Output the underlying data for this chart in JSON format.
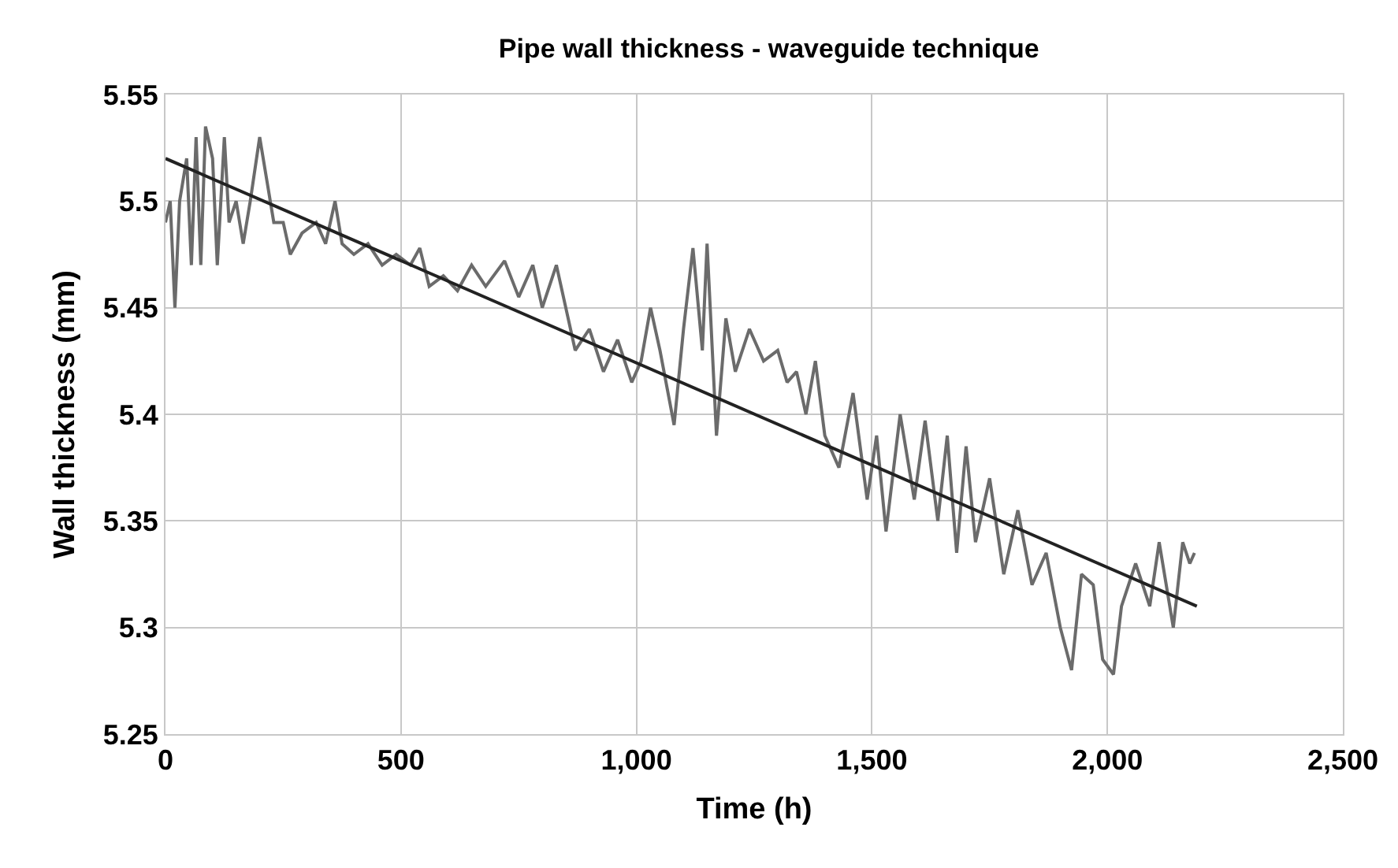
{
  "chart_data": {
    "type": "line",
    "title": "Pipe wall thickness - waveguide technique",
    "xlabel": "Time (h)",
    "ylabel": "Wall thickness (mm)",
    "xlim": [
      0,
      2500
    ],
    "xticks": [
      0,
      500,
      {
        "value": 1000,
        "label": "1,000"
      },
      {
        "value": 1500,
        "label": "1,500"
      },
      {
        "value": 2000,
        "label": "2,000"
      },
      {
        "value": 2500,
        "label": "2,500"
      }
    ],
    "ylim": [
      5.25,
      5.55
    ],
    "yticks": [
      5.25,
      5.3,
      5.35,
      5.4,
      5.45,
      5.5,
      5.55
    ],
    "grid": true,
    "marker": "none",
    "line_style": "solid",
    "series": [
      {
        "color": "#6b6b6b",
        "x": [
          0,
          10,
          20,
          30,
          45,
          55,
          65,
          75,
          85,
          100,
          110,
          125,
          135,
          150,
          165,
          180,
          200,
          215,
          230,
          250,
          265,
          290,
          320,
          340,
          360,
          375,
          400,
          430,
          460,
          490,
          520,
          540,
          560,
          590,
          620,
          650,
          680,
          720,
          750,
          780,
          800,
          830,
          850,
          870,
          900,
          930,
          960,
          990,
          1010,
          1030,
          1050,
          1080,
          1100,
          1120,
          1140,
          1150,
          1170,
          1190,
          1210,
          1240,
          1270,
          1300,
          1320,
          1340,
          1360,
          1380,
          1400,
          1430,
          1460,
          1490,
          1510,
          1530,
          1560,
          1590,
          1613,
          1640,
          1660,
          1680,
          1700,
          1720,
          1750,
          1780,
          1810,
          1840,
          1870,
          1900,
          1924,
          1945,
          1970,
          1990,
          2013,
          2030,
          2060,
          2090,
          2110,
          2140,
          2160,
          2175,
          2185
        ],
        "values": [
          5.49,
          5.5,
          5.45,
          5.5,
          5.52,
          5.47,
          5.53,
          5.47,
          5.535,
          5.52,
          5.47,
          5.53,
          5.49,
          5.5,
          5.48,
          5.5,
          5.53,
          5.51,
          5.49,
          5.49,
          5.475,
          5.485,
          5.49,
          5.48,
          5.5,
          5.48,
          5.475,
          5.48,
          5.47,
          5.475,
          5.47,
          5.478,
          5.46,
          5.465,
          5.458,
          5.47,
          5.46,
          5.472,
          5.455,
          5.47,
          5.45,
          5.47,
          5.45,
          5.43,
          5.44,
          5.42,
          5.435,
          5.415,
          5.425,
          5.45,
          5.43,
          5.395,
          5.44,
          5.478,
          5.43,
          5.48,
          5.39,
          5.445,
          5.42,
          5.44,
          5.425,
          5.43,
          5.415,
          5.42,
          5.4,
          5.425,
          5.39,
          5.375,
          5.41,
          5.36,
          5.39,
          5.345,
          5.4,
          5.36,
          5.397,
          5.35,
          5.39,
          5.335,
          5.385,
          5.34,
          5.37,
          5.325,
          5.355,
          5.32,
          5.335,
          5.3,
          5.28,
          5.325,
          5.32,
          5.285,
          5.278,
          5.31,
          5.33,
          5.31,
          5.34,
          5.3,
          5.34,
          5.33,
          5.335
        ]
      },
      {
        "color": "#222222",
        "x": [
          0,
          2190
        ],
        "values": [
          5.52,
          5.31
        ]
      }
    ]
  }
}
